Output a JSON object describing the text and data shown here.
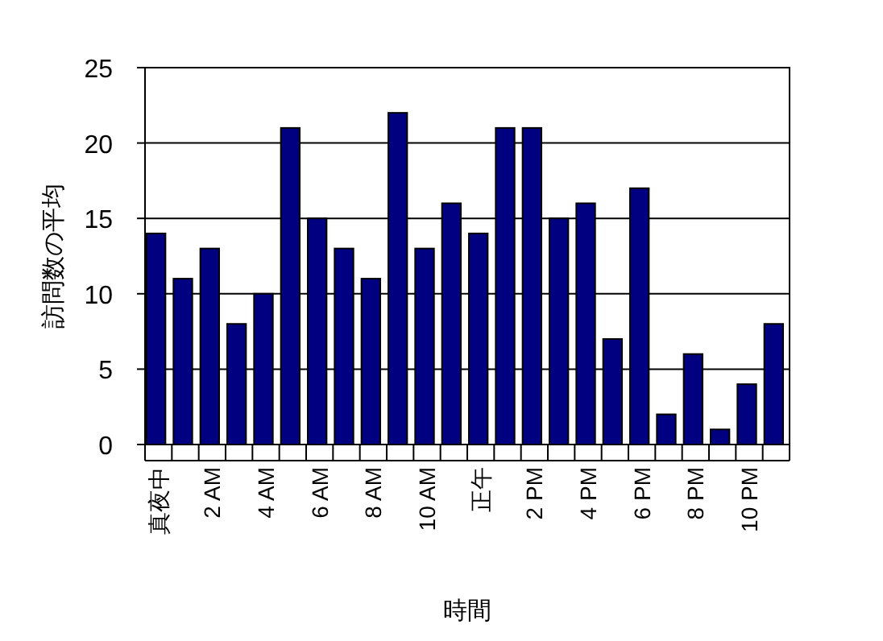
{
  "chart_data": {
    "type": "bar",
    "xlabel": "時間",
    "ylabel": "訪問数の平均",
    "categories": [
      "真夜中",
      null,
      "2 AM",
      null,
      "4 AM",
      null,
      "6 AM",
      null,
      "8 AM",
      null,
      "10 AM",
      null,
      "正午",
      null,
      "2 PM",
      null,
      "4 PM",
      null,
      "6 PM",
      null,
      "8 PM",
      null,
      "10 PM",
      null
    ],
    "values": [
      14,
      11,
      13,
      8,
      10,
      21,
      15,
      13,
      11,
      22,
      13,
      16,
      14,
      21,
      21,
      15,
      16,
      7,
      17,
      2,
      6,
      1,
      4,
      8
    ],
    "color": "#000080",
    "ylim": [
      0,
      25
    ],
    "yticks": [
      0,
      5,
      10,
      15,
      20,
      25
    ],
    "grid": "y"
  }
}
